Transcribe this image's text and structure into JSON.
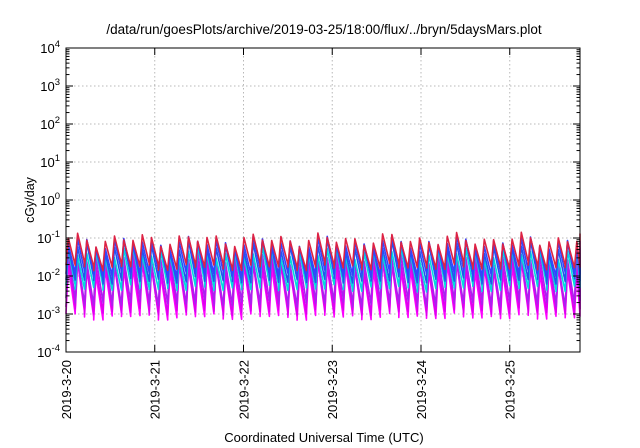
{
  "chart_data": {
    "type": "line",
    "title": "/data/run/goesPlots/archive/2019-03-25/18:00/flux/../bryn/5daysMars.plot",
    "xlabel": "Coordinated Universal Time (UTC)",
    "ylabel": "cGy/day",
    "yscale": "log",
    "ylim": [
      0.0001,
      10000
    ],
    "y_ticks": [
      {
        "base": "10",
        "exp": "-4",
        "value": 0.0001
      },
      {
        "base": "10",
        "exp": "-3",
        "value": 0.001
      },
      {
        "base": "10",
        "exp": "-2",
        "value": 0.01
      },
      {
        "base": "10",
        "exp": "-1",
        "value": 0.1
      },
      {
        "base": "10",
        "exp": "0",
        "value": 1
      },
      {
        "base": "10",
        "exp": "1",
        "value": 10
      },
      {
        "base": "10",
        "exp": "2",
        "value": 100
      },
      {
        "base": "10",
        "exp": "3",
        "value": 1000
      },
      {
        "base": "10",
        "exp": "4",
        "value": 10000
      }
    ],
    "x_ticks": [
      "2019-3-20",
      "2019-3-21",
      "2019-3-22",
      "2019-3-23",
      "2019-3-24",
      "2019-3-25"
    ],
    "xlim": [
      "2019-03-20T00:00",
      "2019-03-25T19:00"
    ],
    "grid": true,
    "legend": "none",
    "oscillation_period_hours": 2.5,
    "series": [
      {
        "color": "#ff00ff",
        "peak": 0.016,
        "trough": 0.0009
      },
      {
        "color": "#dd00ee",
        "peak": 0.022,
        "trough": 0.0012
      },
      {
        "color": "#aa22ee",
        "peak": 0.03,
        "trough": 0.002
      },
      {
        "color": "#00dddd",
        "peak": 0.04,
        "trough": 0.005
      },
      {
        "color": "#2255ee",
        "peak": 0.06,
        "trough": 0.008
      },
      {
        "color": "#3344ff",
        "peak": 0.075,
        "trough": 0.012
      },
      {
        "color": "#dd2244",
        "peak": 0.09,
        "trough": 0.018
      }
    ]
  }
}
